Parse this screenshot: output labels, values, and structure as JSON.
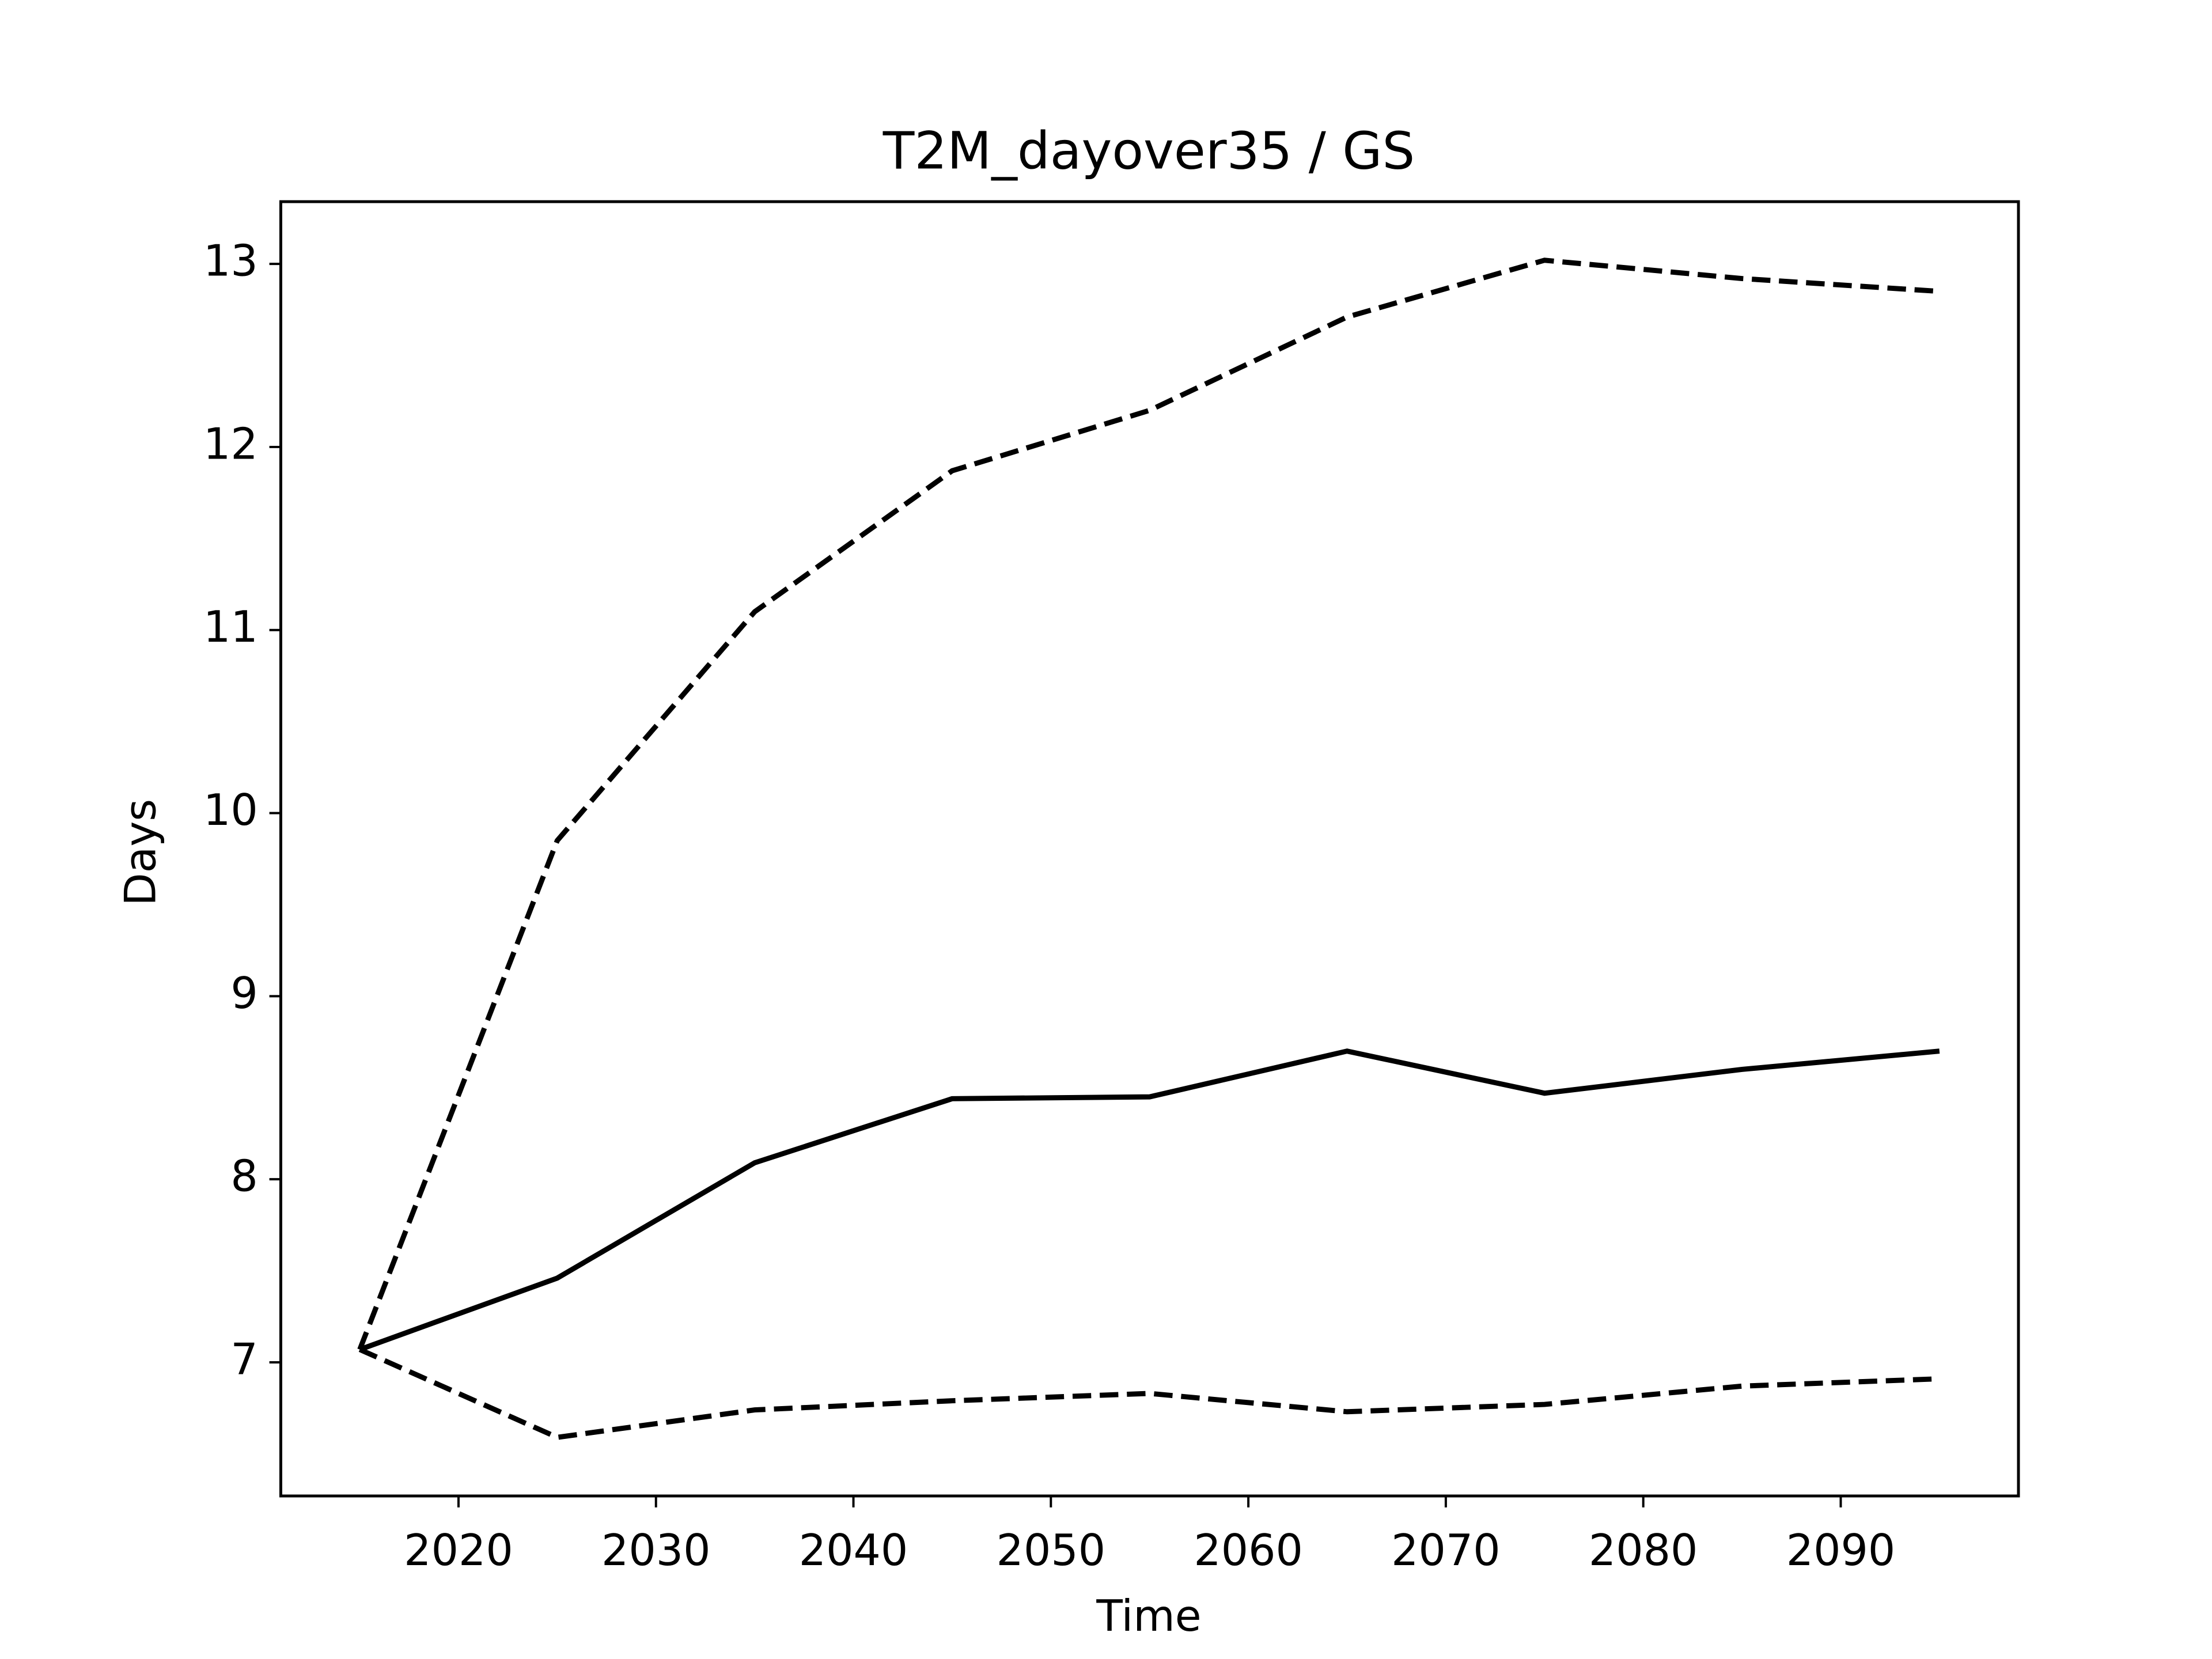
{
  "chart_data": {
    "type": "line",
    "title": "T2M_dayover35 / GS",
    "xlabel": "Time",
    "ylabel": "Days",
    "x": [
      2015,
      2025,
      2035,
      2045,
      2055,
      2065,
      2075,
      2085,
      2095
    ],
    "series": [
      {
        "color": "#000000",
        "linestyle": "solid",
        "values": [
          7.07,
          7.46,
          8.09,
          8.44,
          8.45,
          8.7,
          8.47,
          8.6,
          8.7
        ]
      },
      {
        "color": "#000000",
        "linestyle": "dashed",
        "values": [
          7.07,
          9.85,
          11.1,
          11.87,
          12.2,
          12.71,
          13.02,
          12.92,
          12.85
        ]
      },
      {
        "color": "#000000",
        "linestyle": "dashed",
        "values": [
          7.07,
          6.59,
          6.74,
          6.79,
          6.83,
          6.73,
          6.77,
          6.87,
          6.91
        ]
      }
    ],
    "xlim": [
      2011,
      2099
    ],
    "ylim": [
      6.27,
      13.34
    ],
    "xticks": [
      2020,
      2030,
      2040,
      2050,
      2060,
      2070,
      2080,
      2090
    ],
    "yticks": [
      7,
      8,
      9,
      10,
      11,
      12,
      13
    ]
  }
}
